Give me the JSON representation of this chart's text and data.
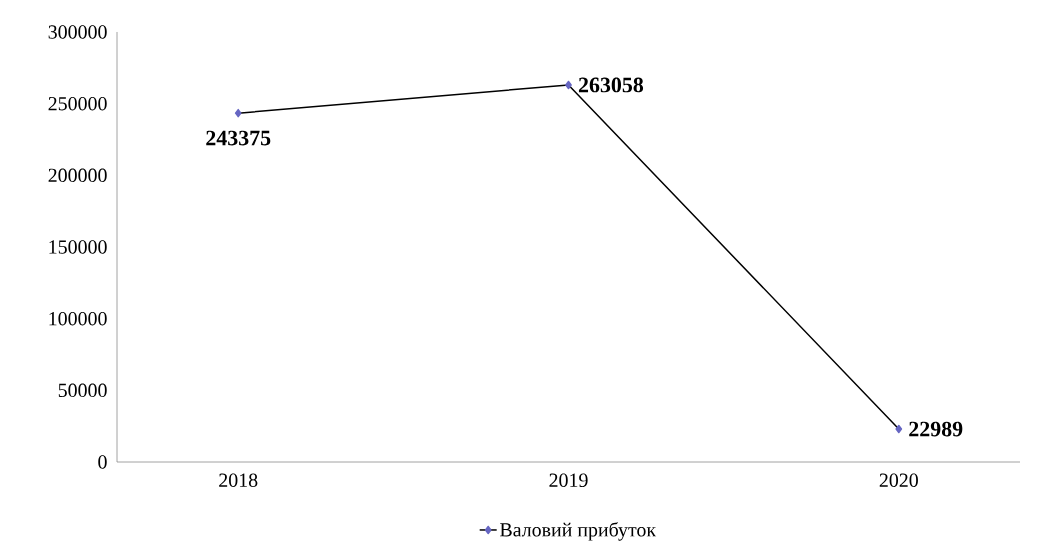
{
  "chart_data": {
    "type": "line",
    "categories": [
      "2018",
      "2019",
      "2020"
    ],
    "series": [
      {
        "name": "Валовий прибуток",
        "color": "#000000",
        "values": [
          243375,
          263058,
          22989
        ]
      }
    ],
    "ylim": [
      0,
      300000
    ],
    "yticks": [
      0,
      50000,
      100000,
      150000,
      200000,
      250000,
      300000
    ],
    "data_labels": true,
    "legend": "bottom",
    "marker": "diamond",
    "grid": false
  }
}
